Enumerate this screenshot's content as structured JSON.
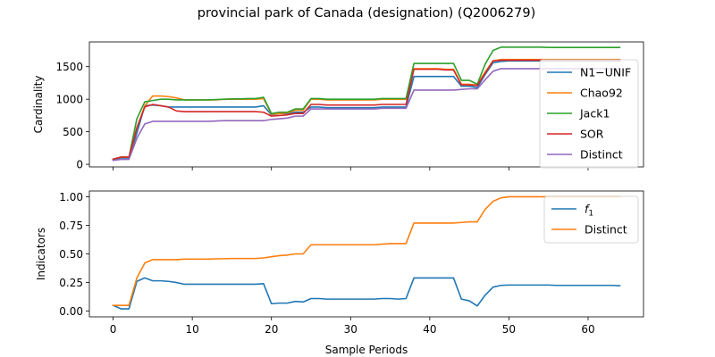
{
  "title": "provincial park of Canada (designation) (Q2006279)",
  "colors": {
    "blue": "#1f77b4",
    "orange": "#ff7f0e",
    "green": "#2ca02c",
    "red": "#d62728",
    "purple": "#9467bd"
  },
  "chart_data": [
    {
      "type": "line",
      "ylabel": "Cardinality",
      "xlabel": "",
      "xlim": [
        -3,
        67
      ],
      "ylim": [
        -40,
        1880
      ],
      "xticks": [
        0,
        10,
        20,
        30,
        40,
        50,
        60
      ],
      "xtick_labels": [
        "",
        "",
        "",
        "",
        "",
        "",
        ""
      ],
      "yticks": [
        0,
        500,
        1000,
        1500
      ],
      "ytick_labels": [
        "0",
        "500",
        "1000",
        "1500"
      ],
      "legend": "right",
      "series": [
        {
          "name": "N1−UNIF",
          "color": "#1f77b4",
          "values": [
            80,
            85,
            85,
            480,
            900,
            910,
            900,
            880,
            880,
            880,
            880,
            880,
            880,
            880,
            880,
            880,
            880,
            880,
            880,
            900,
            760,
            780,
            780,
            800,
            800,
            880,
            880,
            870,
            870,
            870,
            870,
            870,
            870,
            870,
            880,
            880,
            880,
            880,
            1350,
            1350,
            1350,
            1350,
            1350,
            1350,
            1200,
            1200,
            1180,
            1380,
            1560,
            1580,
            1590,
            1590,
            1590,
            1590,
            1590,
            1590,
            1590,
            1590,
            1590,
            1590,
            1590,
            1590,
            1590,
            1590,
            1590
          ]
        },
        {
          "name": "Chao92",
          "color": "#ff7f0e",
          "values": [
            80,
            110,
            110,
            560,
            900,
            1050,
            1050,
            1040,
            1020,
            990,
            990,
            990,
            990,
            990,
            1000,
            1000,
            1000,
            1000,
            1000,
            1010,
            770,
            780,
            790,
            830,
            830,
            1000,
            1000,
            990,
            990,
            990,
            990,
            990,
            990,
            990,
            1000,
            1000,
            1000,
            1000,
            1470,
            1470,
            1470,
            1470,
            1460,
            1460,
            1230,
            1230,
            1220,
            1420,
            1590,
            1610,
            1610,
            1610,
            1610,
            1610,
            1610,
            1610,
            1610,
            1610,
            1610,
            1610,
            1610,
            1610,
            1610,
            1610,
            1610
          ]
        },
        {
          "name": "Jack1",
          "color": "#2ca02c",
          "values": [
            80,
            110,
            110,
            700,
            960,
            980,
            1000,
            1000,
            990,
            990,
            990,
            990,
            990,
            995,
            1000,
            1005,
            1005,
            1010,
            1010,
            1030,
            780,
            800,
            800,
            850,
            850,
            1010,
            1010,
            1000,
            1000,
            1000,
            1000,
            1000,
            1000,
            1000,
            1010,
            1010,
            1010,
            1010,
            1550,
            1550,
            1550,
            1550,
            1550,
            1550,
            1290,
            1290,
            1230,
            1540,
            1750,
            1800,
            1800,
            1800,
            1800,
            1800,
            1800,
            1795,
            1795,
            1795,
            1795,
            1795,
            1795,
            1795,
            1795,
            1795,
            1795
          ]
        },
        {
          "name": "SOR",
          "color": "#d62728",
          "values": [
            80,
            110,
            110,
            560,
            880,
            920,
            900,
            880,
            820,
            810,
            810,
            810,
            810,
            810,
            810,
            810,
            810,
            810,
            810,
            800,
            740,
            750,
            760,
            780,
            780,
            920,
            920,
            910,
            910,
            910,
            910,
            910,
            910,
            910,
            920,
            920,
            920,
            920,
            1460,
            1460,
            1460,
            1460,
            1450,
            1450,
            1220,
            1220,
            1210,
            1400,
            1590,
            1600,
            1600,
            1600,
            1600,
            1600,
            1600,
            1600,
            1600,
            1600,
            1600,
            1600,
            1600,
            1600,
            1600,
            1600,
            1600
          ]
        },
        {
          "name": "Distinct",
          "color": "#9467bd",
          "values": [
            60,
            75,
            75,
            400,
            620,
            660,
            660,
            660,
            660,
            660,
            660,
            660,
            660,
            665,
            670,
            670,
            670,
            670,
            670,
            670,
            690,
            700,
            710,
            740,
            740,
            850,
            850,
            850,
            850,
            850,
            850,
            850,
            850,
            850,
            860,
            860,
            860,
            860,
            1140,
            1140,
            1140,
            1140,
            1140,
            1140,
            1150,
            1160,
            1160,
            1300,
            1430,
            1470,
            1470,
            1470,
            1470,
            1470,
            1470,
            1470,
            1470,
            1470,
            1470,
            1470,
            1470,
            1470,
            1470,
            1470,
            1470
          ]
        }
      ]
    },
    {
      "type": "line",
      "ylabel": "Indicators",
      "xlabel": "Sample Periods",
      "xlim": [
        -3,
        67
      ],
      "ylim": [
        -0.05,
        1.05
      ],
      "xticks": [
        0,
        10,
        20,
        30,
        40,
        50,
        60
      ],
      "xtick_labels": [
        "0",
        "10",
        "20",
        "30",
        "40",
        "50",
        "60"
      ],
      "yticks": [
        0.0,
        0.25,
        0.5,
        0.75,
        1.0
      ],
      "ytick_labels": [
        "0.00",
        "0.25",
        "0.50",
        "0.75",
        "1.00"
      ],
      "legend": "upper right",
      "series": [
        {
          "name": "f1",
          "color": "#1f77b4",
          "values": [
            0.05,
            0.02,
            0.02,
            0.26,
            0.29,
            0.265,
            0.265,
            0.26,
            0.25,
            0.235,
            0.235,
            0.235,
            0.235,
            0.235,
            0.235,
            0.235,
            0.235,
            0.235,
            0.235,
            0.24,
            0.065,
            0.07,
            0.07,
            0.085,
            0.08,
            0.11,
            0.11,
            0.105,
            0.105,
            0.105,
            0.105,
            0.105,
            0.105,
            0.105,
            0.11,
            0.11,
            0.105,
            0.11,
            0.29,
            0.29,
            0.29,
            0.29,
            0.29,
            0.29,
            0.105,
            0.09,
            0.045,
            0.14,
            0.21,
            0.225,
            0.228,
            0.228,
            0.228,
            0.228,
            0.228,
            0.228,
            0.225,
            0.225,
            0.225,
            0.225,
            0.225,
            0.225,
            0.225,
            0.225,
            0.222
          ]
        },
        {
          "name": "Distinct",
          "color": "#ff7f0e",
          "values": [
            0.05,
            0.05,
            0.05,
            0.29,
            0.42,
            0.45,
            0.45,
            0.45,
            0.45,
            0.455,
            0.455,
            0.455,
            0.455,
            0.457,
            0.458,
            0.46,
            0.46,
            0.46,
            0.46,
            0.465,
            0.475,
            0.485,
            0.49,
            0.5,
            0.5,
            0.58,
            0.58,
            0.58,
            0.58,
            0.58,
            0.58,
            0.58,
            0.58,
            0.58,
            0.585,
            0.59,
            0.59,
            0.59,
            0.77,
            0.77,
            0.77,
            0.77,
            0.77,
            0.77,
            0.775,
            0.78,
            0.78,
            0.89,
            0.96,
            0.99,
            1.0,
            1.0,
            1.0,
            1.0,
            1.0,
            1.0,
            1.0,
            1.0,
            1.0,
            1.0,
            1.0,
            1.0,
            1.0,
            1.0,
            1.0
          ]
        }
      ]
    }
  ]
}
